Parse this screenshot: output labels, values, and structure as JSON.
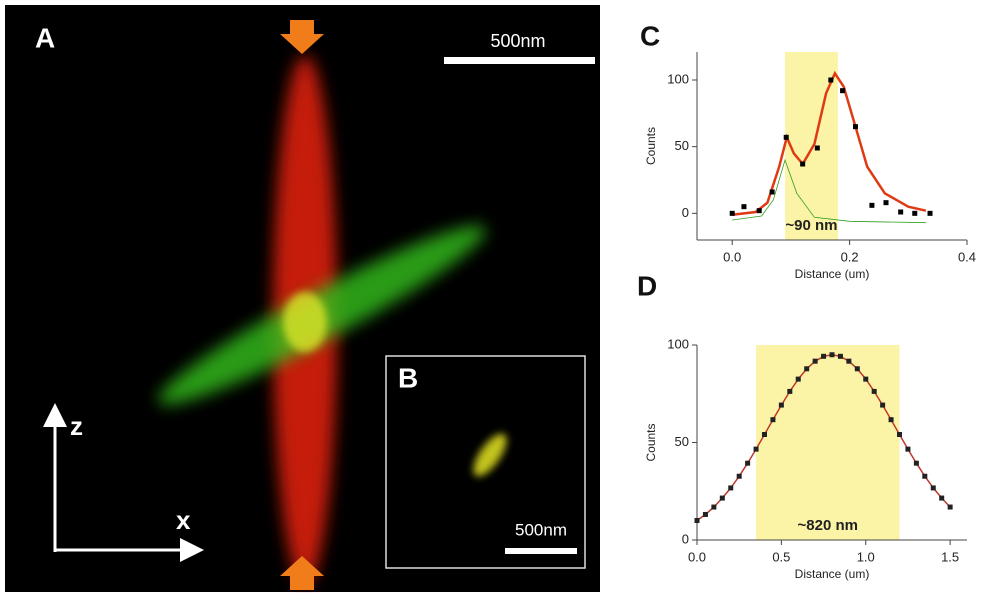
{
  "panel_a": {
    "label": "A",
    "scale_bar": "500nm",
    "axis_z": "z",
    "axis_x": "x"
  },
  "panel_b": {
    "label": "B",
    "scale_bar": "500nm"
  },
  "chart_data": [
    {
      "type": "line",
      "panel": "C",
      "x_label": "Distance (um)",
      "y_label": "Counts",
      "xlim": [
        -0.06,
        0.4
      ],
      "xticks": [
        {
          "value": 0,
          "label": "0.0"
        },
        0.2,
        0.4
      ],
      "ylim": [
        -20,
        121
      ],
      "yticks": [
        0,
        50,
        100
      ],
      "highlight": [
        0.09,
        0.18
      ],
      "highlight_color": "#fbf3a6",
      "annotation": "~90 nm",
      "series": [
        {
          "kind": "line",
          "color": "#2e9e1e",
          "width": 0.8,
          "x": [
            0,
            0.05,
            0.07,
            0.09,
            0.11,
            0.14,
            0.2,
            0.33
          ],
          "values": [
            -5,
            -2,
            10,
            40,
            15,
            -3,
            -6,
            -7
          ]
        },
        {
          "kind": "line",
          "color": "#e03a14",
          "width": 2.5,
          "x": [
            0,
            0.04,
            0.06,
            0.08,
            0.093,
            0.105,
            0.12,
            0.14,
            0.16,
            0.175,
            0.19,
            0.21,
            0.23,
            0.26,
            0.3,
            0.33
          ],
          "values": [
            -1,
            1,
            8,
            35,
            57,
            45,
            37,
            52,
            90,
            105,
            95,
            65,
            35,
            15,
            5,
            2
          ]
        },
        {
          "kind": "markers",
          "color": "#000000",
          "x": [
            0,
            0.02,
            0.046,
            0.068,
            0.092,
            0.12,
            0.145,
            0.168,
            0.188,
            0.21,
            0.238,
            0.262,
            0.287,
            0.311,
            0.337
          ],
          "values": [
            0,
            5,
            2,
            16,
            57,
            37,
            49,
            100,
            92,
            65,
            6,
            8,
            1,
            0,
            0
          ]
        }
      ]
    },
    {
      "type": "line",
      "panel": "D",
      "x_label": "Distance (um)",
      "y_label": "Counts",
      "xlim": [
        0,
        1.6
      ],
      "xticks": [
        {
          "value": 0,
          "label": "0.0"
        },
        0.5,
        {
          "value": 1,
          "label": "1.0"
        },
        1.5
      ],
      "ylim": [
        0,
        100
      ],
      "yticks": [
        0,
        50,
        100
      ],
      "highlight": [
        0.35,
        1.2
      ],
      "highlight_color": "#fbf3a6",
      "annotation": "~820 nm",
      "series": [
        {
          "kind": "line",
          "color": "#c0392b",
          "width": 1.5,
          "x": [
            0,
            0.05,
            0.1,
            0.15,
            0.2,
            0.25,
            0.3,
            0.35,
            0.4,
            0.45,
            0.5,
            0.55,
            0.6,
            0.65,
            0.7,
            0.75,
            0.8,
            0.85,
            0.9,
            0.95,
            1,
            1.05,
            1.1,
            1.15,
            1.2,
            1.25,
            1.3,
            1.35,
            1.4,
            1.45,
            1.5
          ],
          "values": [
            10,
            13.1,
            16.9,
            21.5,
            26.7,
            32.7,
            39.4,
            46.6,
            54.1,
            61.7,
            69.2,
            76.2,
            82.5,
            87.8,
            91.7,
            94.2,
            95,
            94.2,
            91.7,
            87.8,
            82.5,
            76.2,
            69.2,
            61.7,
            54.1,
            46.6,
            39.4,
            32.7,
            26.7,
            21.5,
            16.9
          ]
        },
        {
          "kind": "markers",
          "color": "#222222",
          "x": [
            0,
            0.05,
            0.1,
            0.15,
            0.2,
            0.25,
            0.3,
            0.35,
            0.4,
            0.45,
            0.5,
            0.55,
            0.6,
            0.65,
            0.7,
            0.75,
            0.8,
            0.85,
            0.9,
            0.95,
            1,
            1.05,
            1.1,
            1.15,
            1.2,
            1.25,
            1.3,
            1.35,
            1.4,
            1.45,
            1.5
          ],
          "values": [
            10,
            13.1,
            16.9,
            21.5,
            26.7,
            32.7,
            39.4,
            46.6,
            54.1,
            61.7,
            69.2,
            76.2,
            82.5,
            87.8,
            91.7,
            94.2,
            95,
            94.2,
            91.7,
            87.8,
            82.5,
            76.2,
            69.2,
            61.7,
            54.1,
            46.6,
            39.4,
            32.7,
            26.7,
            21.5,
            16.9
          ]
        }
      ]
    }
  ]
}
